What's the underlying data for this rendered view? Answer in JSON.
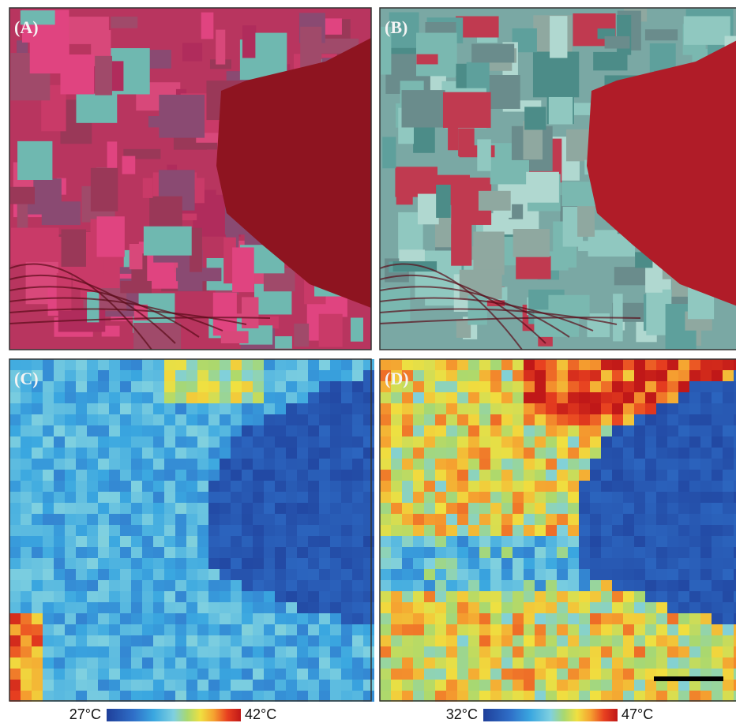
{
  "panels": [
    {
      "label": "(A)"
    },
    {
      "label": "(B)"
    },
    {
      "label": "(C)"
    },
    {
      "label": "(D)"
    }
  ],
  "colorbars": [
    {
      "min_label": "27°C",
      "max_label": "42°C"
    },
    {
      "min_label": "32°C",
      "max_label": "47°C"
    }
  ]
}
